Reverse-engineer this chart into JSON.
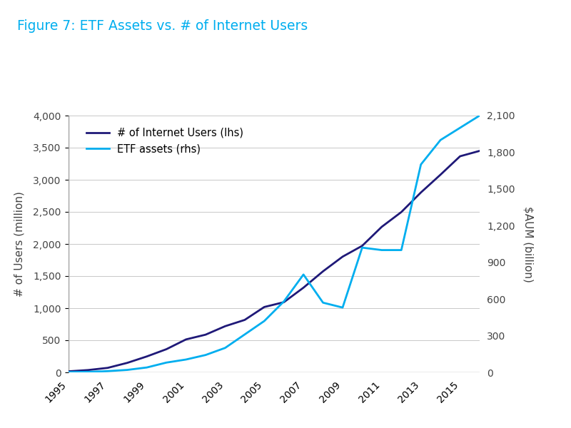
{
  "title": "Figure 7: ETF Assets vs. # of Internet Users",
  "title_color": "#00AEEF",
  "ylabel_left": "# of Users (million)",
  "ylabel_right": "$AUM (billion)",
  "ylabel_color": "#444444",
  "ylim_left": [
    0,
    4000
  ],
  "ylim_right": [
    0,
    2100
  ],
  "yticks_left": [
    0,
    500,
    1000,
    1500,
    2000,
    2500,
    3000,
    3500,
    4000
  ],
  "yticks_right": [
    0,
    300,
    600,
    900,
    1200,
    1500,
    1800,
    2100
  ],
  "years": [
    1995,
    1996,
    1997,
    1998,
    1999,
    2000,
    2001,
    2002,
    2003,
    2004,
    2005,
    2006,
    2007,
    2008,
    2009,
    2010,
    2011,
    2012,
    2013,
    2014,
    2015,
    2016
  ],
  "internet_users": [
    16,
    36,
    70,
    148,
    248,
    361,
    513,
    587,
    719,
    817,
    1018,
    1093,
    1319,
    1574,
    1802,
    1971,
    2267,
    2497,
    2802,
    3079,
    3366,
    3450
  ],
  "etf_assets": [
    2,
    4,
    10,
    20,
    40,
    80,
    105,
    142,
    200,
    310,
    420,
    580,
    800,
    570,
    530,
    1020,
    1000,
    1000,
    1700,
    1900,
    2000,
    2100
  ],
  "internet_color": "#1F1978",
  "etf_color": "#00AEEF",
  "internet_label": "# of Internet Users (lhs)",
  "etf_label": "ETF assets (rhs)",
  "xtick_years": [
    1995,
    1997,
    1999,
    2001,
    2003,
    2005,
    2007,
    2009,
    2011,
    2013,
    2015
  ],
  "background_color": "#FFFFFF",
  "grid_color": "#C8C8C8",
  "line_width": 2.0,
  "top_bar_color": "#00AEEF",
  "top_bar_height": 0.008
}
